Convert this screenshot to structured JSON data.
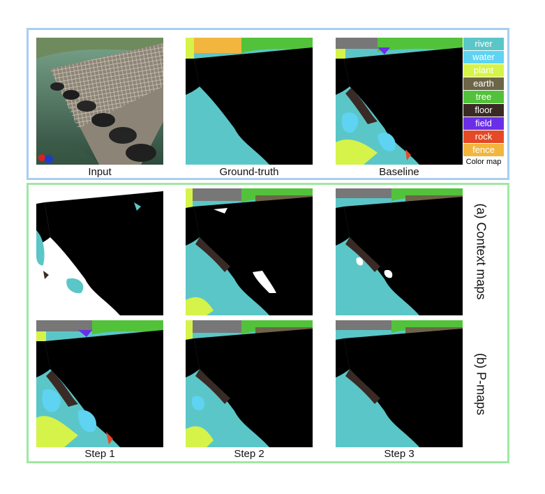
{
  "captions": {
    "input": "Input",
    "ground_truth": "Ground-truth",
    "baseline": "Baseline",
    "step1": "Step 1",
    "step2": "Step 2",
    "step3": "Step 3"
  },
  "row_labels": {
    "context": "(a) Context maps",
    "pmaps": "(b) P-maps"
  },
  "legend": {
    "title": "Color map",
    "items": [
      {
        "label": "river",
        "color": "#5bc6c8"
      },
      {
        "label": "water",
        "color": "#5ed3f2"
      },
      {
        "label": "plant",
        "color": "#d6f34a"
      },
      {
        "label": "earth",
        "color": "#6d6548"
      },
      {
        "label": "tree",
        "color": "#52c23b"
      },
      {
        "label": "floor",
        "color": "#3a2a26"
      },
      {
        "label": "field",
        "color": "#6a2ee8"
      },
      {
        "label": "rock",
        "color": "#e44a25"
      },
      {
        "label": "fence",
        "color": "#f2b63e"
      }
    ]
  },
  "colors": {
    "river": "#5bc6c8",
    "water": "#5ed3f2",
    "plant": "#d6f34a",
    "earth": "#6d6548",
    "tree": "#52c23b",
    "floor": "#3a2a26",
    "field": "#6a2ee8",
    "rock": "#e44a25",
    "fence": "#f2b63e",
    "sky": "#777777",
    "bridge": "#000000",
    "context_bg": "#ffffff",
    "top_frame": "#a9cdf2",
    "bottom_frame": "#9fe8a3"
  }
}
